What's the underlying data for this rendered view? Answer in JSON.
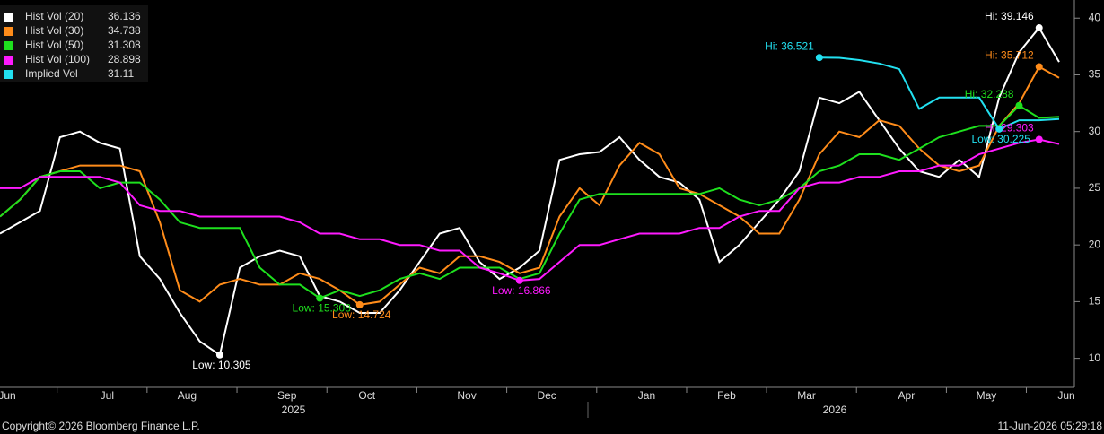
{
  "chart_data": {
    "type": "line",
    "categories": [
      "Jun",
      null,
      null,
      null,
      null,
      "Jul",
      null,
      null,
      null,
      "Aug",
      null,
      null,
      null,
      null,
      "Sep",
      null,
      null,
      null,
      "Oct",
      null,
      null,
      null,
      null,
      "Nov",
      null,
      null,
      null,
      "Dec",
      null,
      null,
      null,
      null,
      "Jan",
      null,
      null,
      null,
      "Feb",
      null,
      null,
      null,
      "Mar",
      null,
      null,
      null,
      null,
      "Apr",
      null,
      null,
      null,
      "May",
      null,
      null,
      null,
      "Jun"
    ],
    "year_labels": [
      "2025",
      "2026"
    ],
    "ylim": [
      7.44,
      41.6
    ],
    "yticks": [
      10,
      15,
      20,
      25,
      30,
      35,
      40
    ],
    "grid": false,
    "legend": "upper left",
    "series": [
      {
        "name": "Hist Vol (20)",
        "color": "#ffffff",
        "last": 36.136,
        "values": [
          21,
          22,
          23,
          29.5,
          30,
          29,
          28.5,
          19,
          17,
          14,
          11.5,
          10.305,
          18,
          19,
          19.5,
          19,
          15.5,
          15,
          14,
          14,
          16,
          18.5,
          21,
          21.5,
          18.5,
          17,
          18,
          19.5,
          27.5,
          28,
          28.2,
          29.5,
          27.5,
          26,
          25.5,
          24,
          18.5,
          20,
          22,
          24,
          26.5,
          33,
          32.5,
          33.5,
          31,
          28.5,
          26.5,
          26,
          27.5,
          26,
          33,
          37,
          39.146,
          36.136
        ],
        "high": {
          "label": "Hi: 39.146",
          "value": 39.146
        },
        "low": {
          "label": "Low: 10.305",
          "value": 10.305
        }
      },
      {
        "name": "Hist Vol (30)",
        "color": "#ff8c1a",
        "last": 34.738,
        "values": [
          22.5,
          24,
          26,
          26.5,
          27,
          27,
          27,
          26.5,
          22,
          16,
          15,
          16.5,
          17,
          16.5,
          16.5,
          17.5,
          17,
          16,
          14.724,
          15,
          16.5,
          18,
          17.5,
          19,
          19,
          18.5,
          17.5,
          18,
          22.5,
          25,
          23.5,
          27,
          29,
          28,
          25,
          24.5,
          23.5,
          22.5,
          21,
          21,
          24,
          28,
          30,
          29.5,
          31,
          30.5,
          28.5,
          27,
          26.5,
          27,
          30.5,
          32.5,
          35.712,
          34.738
        ],
        "high": {
          "label": "Hi: 35.712",
          "value": 35.712
        },
        "low": {
          "label": "Low: 14.724",
          "value": 14.724
        }
      },
      {
        "name": "Hist Vol (50)",
        "color": "#1ee01e",
        "last": 31.308,
        "values": [
          22.5,
          24,
          26,
          26.5,
          26.5,
          25,
          25.5,
          25.5,
          24,
          22,
          21.5,
          21.5,
          21.5,
          18,
          16.5,
          16.5,
          15.308,
          16,
          15.5,
          16,
          17,
          17.5,
          17,
          18,
          18,
          18,
          17,
          17.5,
          21,
          24,
          24.5,
          24.5,
          24.5,
          24.5,
          24.5,
          24.5,
          25,
          24,
          23.5,
          24,
          25,
          26.5,
          27,
          28,
          28,
          27.5,
          28.5,
          29.5,
          30,
          30.5,
          30.5,
          32.288,
          31.2,
          31.308
        ],
        "high": {
          "label": "Hi: 32.288",
          "value": 32.288
        },
        "low": {
          "label": "Low: 15.308",
          "value": 15.308
        }
      },
      {
        "name": "Hist Vol (100)",
        "color": "#ff1aff",
        "last": 28.898,
        "values": [
          25,
          25,
          26,
          26,
          26,
          26,
          25.5,
          23.5,
          23,
          23,
          22.5,
          22.5,
          22.5,
          22.5,
          22.5,
          22,
          21,
          21,
          20.5,
          20.5,
          20,
          20,
          19.5,
          19.5,
          18,
          17.5,
          16.866,
          17,
          18.5,
          20,
          20,
          20.5,
          21,
          21,
          21,
          21.5,
          21.5,
          22.5,
          23,
          23,
          25,
          25.5,
          25.5,
          26,
          26,
          26.5,
          26.5,
          27,
          27,
          28,
          28.5,
          29,
          29.303,
          28.898
        ],
        "high": {
          "label": "Hi: 29.303",
          "value": 29.303
        },
        "low": {
          "label": "Low: 16.866",
          "value": 16.866
        }
      },
      {
        "name": "Implied Vol",
        "color": "#22e0f0",
        "last": 31.11,
        "values": [
          null,
          null,
          null,
          null,
          null,
          null,
          null,
          null,
          null,
          null,
          null,
          null,
          null,
          null,
          null,
          null,
          null,
          null,
          null,
          null,
          null,
          null,
          null,
          null,
          null,
          null,
          null,
          null,
          null,
          null,
          null,
          null,
          null,
          null,
          null,
          null,
          null,
          null,
          null,
          null,
          null,
          36.521,
          36.5,
          36.3,
          36,
          35.5,
          32,
          33,
          33,
          33,
          30.225,
          31,
          31,
          31.11
        ],
        "high": {
          "label": "Hi: 36.521",
          "value": 36.521
        },
        "low": {
          "label": "Low: 30.225",
          "value": 30.225
        }
      }
    ],
    "footer_left": "Copyright© 2026 Bloomberg Finance L.P.",
    "footer_right": "11-Jun-2026 05:29:18"
  }
}
